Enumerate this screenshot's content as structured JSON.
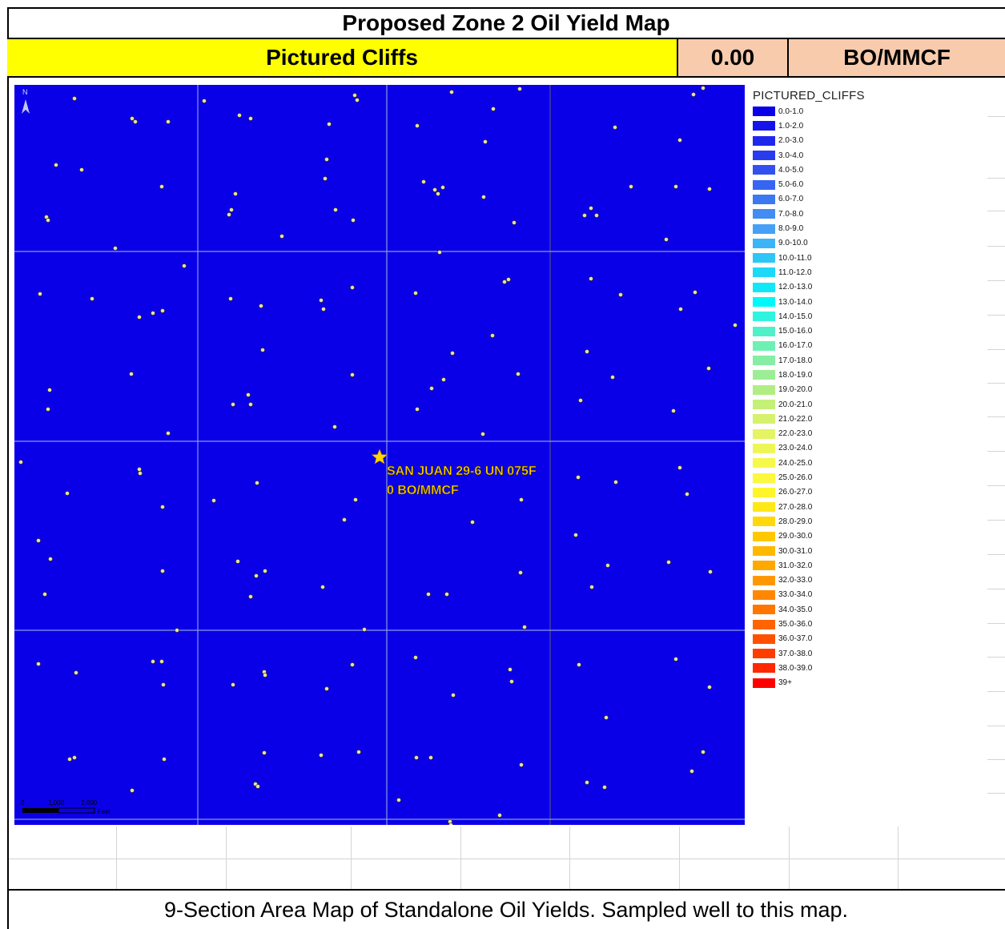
{
  "header": {
    "title": "Proposed Zone 2 Oil Yield Map",
    "zone": "Pictured Cliffs",
    "value": "0.00",
    "unit": "BO/MMCF"
  },
  "map": {
    "north_label": "N",
    "well_label_line1": "SAN JUAN 29-6 UN 075F",
    "well_label_line2": "0 BO/MMCF",
    "scale_labels": [
      "0",
      "1,000",
      "2,000"
    ],
    "scale_unit": "Feet",
    "colors": {
      "background": "#0a00e8",
      "section_line": "#8090d8",
      "well_dot": "#e8e0a0",
      "star": "#ffd700",
      "label": "#ffd200"
    }
  },
  "legend": {
    "title": "PICTURED_CLIFFS",
    "items": [
      {
        "label": "0.0-1.0",
        "color": "#0a00e8"
      },
      {
        "label": "1.0-2.0",
        "color": "#1414ea"
      },
      {
        "label": "2.0-3.0",
        "color": "#1e28ec"
      },
      {
        "label": "3.0-4.0",
        "color": "#283cee"
      },
      {
        "label": "4.0-5.0",
        "color": "#3250ef"
      },
      {
        "label": "5.0-6.0",
        "color": "#3764f0"
      },
      {
        "label": "6.0-7.0",
        "color": "#3c78f2"
      },
      {
        "label": "7.0-8.0",
        "color": "#428cf4"
      },
      {
        "label": "8.0-9.0",
        "color": "#46a0f5"
      },
      {
        "label": "9.0-10.0",
        "color": "#3cb4f6"
      },
      {
        "label": "10.0-11.0",
        "color": "#2cc6f7"
      },
      {
        "label": "11.0-12.0",
        "color": "#1ed8f8"
      },
      {
        "label": "12.0-13.0",
        "color": "#10e8f8"
      },
      {
        "label": "13.0-14.0",
        "color": "#00f8f8"
      },
      {
        "label": "14.0-15.0",
        "color": "#30f4e0"
      },
      {
        "label": "15.0-16.0",
        "color": "#50f0c8"
      },
      {
        "label": "16.0-17.0",
        "color": "#6ef0b4"
      },
      {
        "label": "17.0-18.0",
        "color": "#86eea4"
      },
      {
        "label": "18.0-19.0",
        "color": "#9cee94"
      },
      {
        "label": "19.0-20.0",
        "color": "#b0ee84"
      },
      {
        "label": "20.0-21.0",
        "color": "#c4f078"
      },
      {
        "label": "21.0-22.0",
        "color": "#d6f26c"
      },
      {
        "label": "22.0-23.0",
        "color": "#e4f462"
      },
      {
        "label": "23.0-24.0",
        "color": "#eef656"
      },
      {
        "label": "24.0-25.0",
        "color": "#f6f84a"
      },
      {
        "label": "25.0-26.0",
        "color": "#fcf83c"
      },
      {
        "label": "26.0-27.0",
        "color": "#fff52a"
      },
      {
        "label": "27.0-28.0",
        "color": "#ffe818"
      },
      {
        "label": "28.0-29.0",
        "color": "#ffd80c"
      },
      {
        "label": "29.0-30.0",
        "color": "#ffc800"
      },
      {
        "label": "30.0-31.0",
        "color": "#ffb800"
      },
      {
        "label": "31.0-32.0",
        "color": "#ffa800"
      },
      {
        "label": "32.0-33.0",
        "color": "#ff9800"
      },
      {
        "label": "33.0-34.0",
        "color": "#ff8800"
      },
      {
        "label": "34.0-35.0",
        "color": "#ff7600"
      },
      {
        "label": "35.0-36.0",
        "color": "#ff6400"
      },
      {
        "label": "36.0-37.0",
        "color": "#ff5000"
      },
      {
        "label": "37.0-38.0",
        "color": "#ff3c00"
      },
      {
        "label": "38.0-39.0",
        "color": "#ff2800"
      },
      {
        "label": "39+",
        "color": "#ff0000"
      }
    ]
  },
  "caption": "9-Section Area Map of Standalone Oil Yields. Sampled well to this map."
}
